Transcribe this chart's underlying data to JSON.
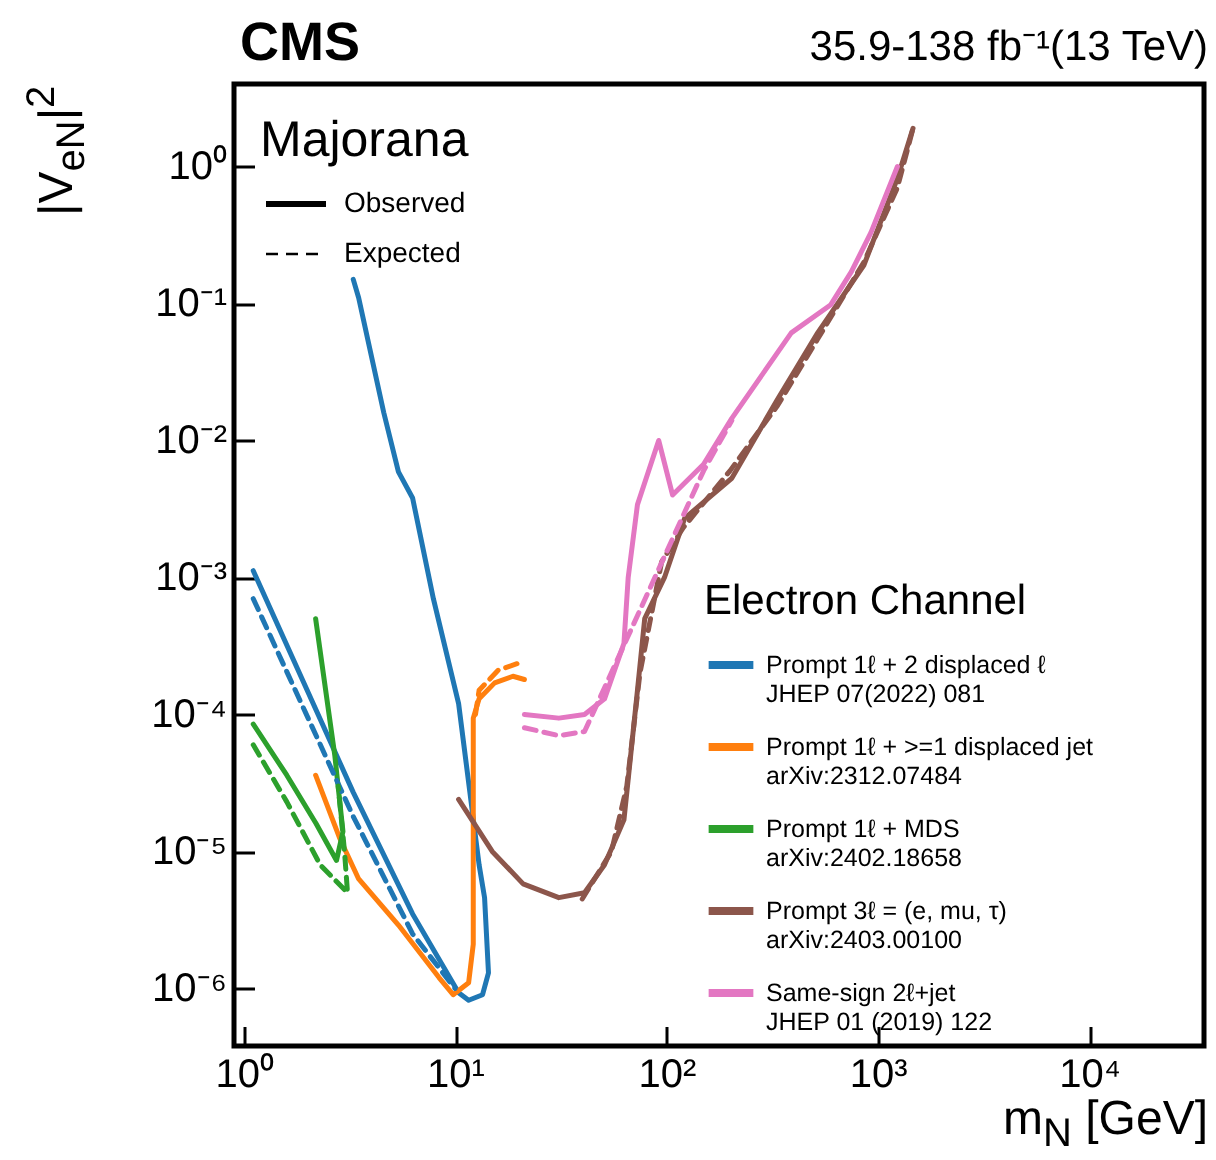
{
  "chart_data": {
    "type": "line",
    "title": "CMS",
    "subtitle": "35.9-138 fb⁻¹(13 TeV)",
    "xlabel": "m$_{N}$ [GeV]",
    "ylabel": "|V$_{eN}$|$^{2}$",
    "legend_title": "Electron Channel",
    "legend": "bottom right",
    "log": "xy",
    "annotations": [
      "Majorana",
      "Observed",
      "Expected"
    ],
    "xlim": [
      0.9,
      35000
    ],
    "xticks": [
      {
        "value": 1,
        "label": "10⁰"
      },
      {
        "value": 10,
        "label": "10¹"
      },
      {
        "value": 100,
        "label": "10²"
      },
      {
        "value": 1000,
        "label": "10³"
      },
      {
        "value": 10000,
        "label": "10⁴"
      }
    ],
    "ylim": [
      3.8e-07,
      4
    ],
    "yticks": [
      {
        "value": 1e-06,
        "label": "10⁻⁶"
      },
      {
        "value": 1e-05,
        "label": "10⁻⁵"
      },
      {
        "value": 0.0001,
        "label": "10⁻⁴"
      },
      {
        "value": 0.001,
        "label": "10⁻³"
      },
      {
        "value": 0.01,
        "label": "10⁻²"
      },
      {
        "value": 0.1,
        "label": "10⁻¹"
      },
      {
        "value": 1,
        "label": "10⁰"
      }
    ],
    "series": [
      {
        "name": "Prompt 1ℓ + 2 displaced ℓ\nJHEP 07(2022) 081",
        "color": "#1f77b4",
        "line_style": "solid",
        "x": [
          1.11,
          3.3,
          6.3,
          10.4,
          11.6,
          13.5,
          14.4,
          13.8,
          13,
          10.4,
          7.9,
          6.3,
          5.4,
          4.6,
          3.5,
          3.3
        ],
        "values": [
          0.00112,
          2.7e-05,
          3.5e-06,
          9.3e-07,
          8.2e-07,
          9e-07,
          1.3e-06,
          4.6e-06,
          8e-06,
          0.00012,
          0.0007,
          0.0038,
          0.0059,
          0.016,
          0.11,
          0.15
        ]
      },
      {
        "color": "#1f77b4",
        "line_style": "dashed",
        "x": [
          1.11,
          3.3,
          6.3,
          10
        ],
        "values": [
          0.0007,
          1.8e-05,
          2.5e-06,
          1e-06
        ]
      },
      {
        "name": "Prompt 1ℓ + >=1 displaced jet\narXiv:2312.07484",
        "color": "#ff7f0e",
        "line_style": "solid",
        "x": [
          2.19,
          2.84,
          3.5,
          5.4,
          8.4,
          9.8,
          11.6,
          12.2,
          12.2,
          13,
          15.4,
          18.8,
          21.3
        ],
        "values": [
          3.6e-05,
          1.26e-05,
          6.3e-06,
          2.9e-06,
          1.2e-06,
          9e-07,
          1.1e-06,
          2.1e-06,
          9.4e-05,
          0.00013,
          0.00017,
          0.00019,
          0.00018
        ]
      },
      {
        "color": "#ff7f0e",
        "line_style": "dashed",
        "x": [
          12.5,
          13,
          16,
          20.5
        ],
        "values": [
          0.0001,
          0.00015,
          0.00021,
          0.00024
        ]
      },
      {
        "name": "Prompt 1ℓ + MDS\narXiv:2402.18658",
        "color": "#2ca02c",
        "line_style": "solid",
        "x": [
          1.11,
          1.6,
          2.2,
          2.75,
          2.95,
          2.7,
          2.19
        ],
        "values": [
          8.5e-05,
          3.6e-05,
          1.6e-05,
          8.6e-06,
          1.4e-05,
          5e-05,
          0.0005
        ]
      },
      {
        "color": "#2ca02c",
        "line_style": "dashed",
        "x": [
          1.11,
          1.6,
          2.3,
          3.1,
          3.0,
          2.8
        ],
        "values": [
          6e-05,
          2.3e-05,
          8e-06,
          5e-06,
          1e-05,
          3e-05
        ]
      },
      {
        "name": "Prompt 3ℓ = (e, mu, τ)\narXiv:2403.00100",
        "color": "#8c564b",
        "line_style": "solid",
        "x": [
          10.4,
          15,
          21,
          31,
          41,
          51,
          63,
          73,
          79,
          98,
          122,
          204,
          336,
          520,
          860,
          1240,
          1470
        ],
        "values": [
          2.4e-05,
          1e-05,
          5.8e-06,
          4.6e-06,
          5e-06,
          8e-06,
          1.7e-05,
          0.00015,
          0.0005,
          0.001,
          0.0027,
          0.0053,
          0.02,
          0.061,
          0.19,
          0.82,
          1.9
        ]
      },
      {
        "color": "#8c564b",
        "line_style": "dashed",
        "x": [
          40,
          55,
          65,
          75,
          95,
          120,
          200,
          336,
          520,
          860,
          1240,
          1470
        ],
        "values": [
          4.5e-06,
          1e-05,
          3e-05,
          0.0002,
          0.0013,
          0.0023,
          0.006,
          0.018,
          0.055,
          0.2,
          0.7,
          1.9
        ]
      },
      {
        "name": "Same-sign 2ℓ+jet\nJHEP 01 (2019) 122",
        "color": "#e377c2",
        "line_style": "solid",
        "x": [
          21.3,
          31,
          41,
          51,
          63,
          66,
          73,
          92,
          107,
          150,
          204,
          390,
          600,
          750,
          930,
          1240
        ],
        "values": [
          0.0001,
          9.4e-05,
          0.0001,
          0.00013,
          0.00033,
          0.001,
          0.0034,
          0.01,
          0.004,
          0.0067,
          0.0145,
          0.061,
          0.098,
          0.17,
          0.33,
          1.0
        ]
      },
      {
        "color": "#e377c2",
        "line_style": "dashed",
        "x": [
          21.3,
          31,
          41,
          150,
          204
        ],
        "values": [
          8e-05,
          7e-05,
          7.5e-05,
          0.006,
          0.014
        ]
      }
    ]
  }
}
